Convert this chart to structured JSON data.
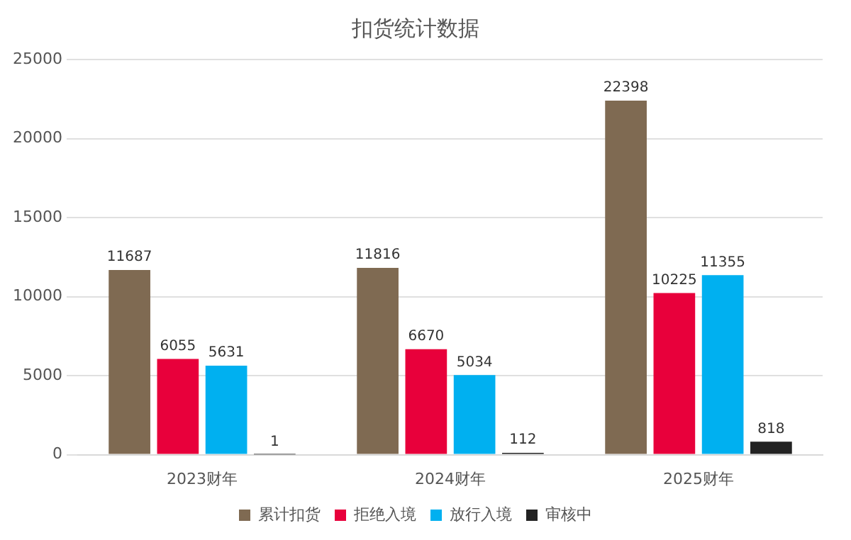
{
  "chart_data": {
    "type": "bar",
    "title": "扣货统计数据",
    "categories": [
      "2023财年",
      "2024财年",
      "2025财年"
    ],
    "series": [
      {
        "name": "累计扣货",
        "color": "#7f6a52",
        "values": [
          11687,
          11816,
          22398
        ]
      },
      {
        "name": "拒绝入境",
        "color": "#e8003b",
        "values": [
          6055,
          6670,
          10225
        ]
      },
      {
        "name": "放行入境",
        "color": "#00b0f0",
        "values": [
          5631,
          5034,
          11355
        ]
      },
      {
        "name": "审核中",
        "color": "#222222",
        "values": [
          1,
          112,
          818
        ]
      }
    ],
    "ylim": [
      0,
      25000
    ],
    "yticks": [
      0,
      5000,
      10000,
      15000,
      20000,
      25000
    ],
    "grid": "y",
    "legend": "bottom",
    "data_labels": true
  }
}
